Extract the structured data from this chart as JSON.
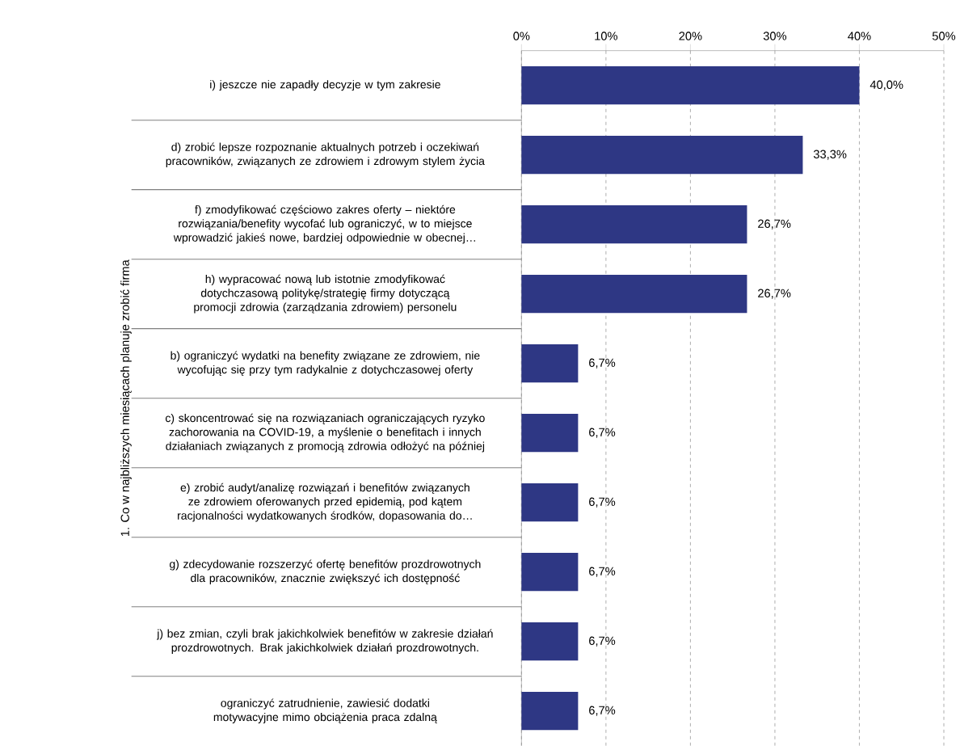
{
  "chart_data": {
    "type": "bar",
    "orientation": "horizontal",
    "ylabel": "1. Co w najbliższych miesiącach planuje zrobić firma",
    "categories": [
      "i) jeszcze nie zapadły decyzje w tym zakresie",
      "d) zrobić lepsze rozpoznanie aktualnych potrzeb i oczekiwań pracowników, związanych ze zdrowiem i zdrowym stylem życia",
      "f) zmodyfikować częściowo zakres oferty – niektóre rozwiązania/benefity wycofać lub ograniczyć, w to miejsce wprowadzić jakieś nowe, bardziej odpowiednie w obecnej…",
      "h) wypracować nową lub istotnie zmodyfikować dotychczasową politykę/strategię firmy dotyczącą promocji zdrowia (zarządzania zdrowiem) personelu",
      "b) ograniczyć wydatki na benefity związane ze zdrowiem, nie wycofując się przy tym radykalnie z dotychczasowej oferty",
      "c) skoncentrować się na rozwiązaniach ograniczających ryzyko zachorowania na COVID-19, a myślenie o benefitach i innych działaniach związanych z promocją zdrowia odłożyć na później",
      "e) zrobić audyt/analizę rozwiązań i benefitów związanych ze zdrowiem oferowanych przed epidemią, pod kątem racjonalności wydatkowanych środków, dopasowania do…",
      "g) zdecydowanie rozszerzyć ofertę benefitów prozdrowotnych dla pracowników, znacznie zwiększyć ich dostępność",
      "j) bez zmian, czyli brak jakichkolwiek benefitów w zakresie działań prozdrowotnych. Brak jakichkolwiek działań prozdrowotnych.",
      "ograniczyć zatrudnienie, zawiesić dodatki motywacyjne mimo obciążenia praca zdalną"
    ],
    "values": [
      40.0,
      33.3,
      26.7,
      26.7,
      6.7,
      6.7,
      6.7,
      6.7,
      6.7,
      6.7
    ],
    "value_labels": [
      "40,0%",
      "33,3%",
      "26,7%",
      "26,7%",
      "6,7%",
      "6,7%",
      "6,7%",
      "6,7%",
      "6,7%",
      "6,7%"
    ],
    "color": "#2e3784",
    "xlim": [
      0,
      50
    ],
    "xticks": [
      {
        "value": 0,
        "label": "0%"
      },
      {
        "value": 10,
        "label": "10%"
      },
      {
        "value": 20,
        "label": "20%"
      },
      {
        "value": 30,
        "label": "30%"
      },
      {
        "value": 40,
        "label": "40%"
      },
      {
        "value": 50,
        "label": "50%"
      }
    ],
    "grid": "x"
  }
}
